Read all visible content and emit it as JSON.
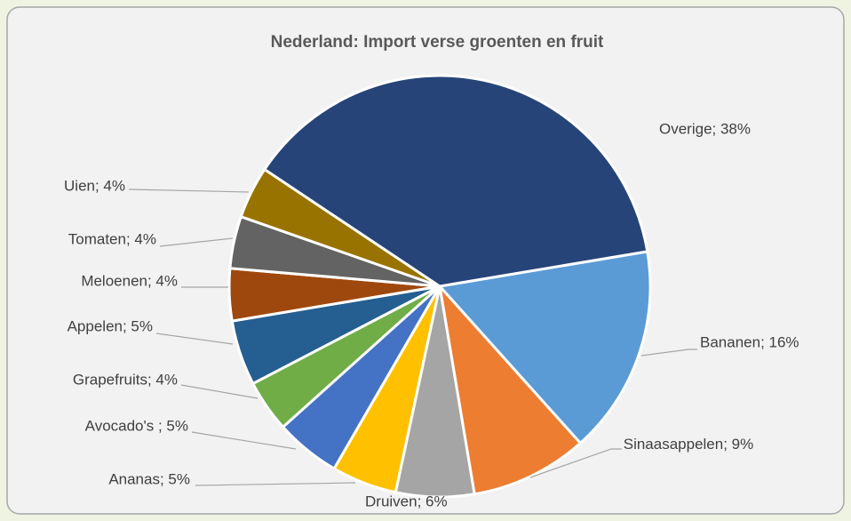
{
  "chart_data": {
    "type": "pie",
    "title": "Nederland: Import verse groenten en fruit",
    "values": [
      16,
      9,
      6,
      5,
      5,
      4,
      5,
      4,
      4,
      4,
      38
    ],
    "value_labels": [
      "Bananen; 16%",
      "Sinaasappelen; 9%",
      "Druiven; 6%",
      "Ananas; 5%",
      "Avocado's ; 5%",
      "Grapefruits; 4%",
      "Appelen; 5%",
      "Meloenen; 4%",
      "Tomaten; 4%",
      "Uien; 4%",
      "Overige; 38%"
    ],
    "colors": [
      "#5b9bd5",
      "#ed7d31",
      "#a5a5a5",
      "#ffc000",
      "#4472c4",
      "#70ad47",
      "#255e91",
      "#9e480e",
      "#636363",
      "#997300",
      "#264478"
    ]
  }
}
